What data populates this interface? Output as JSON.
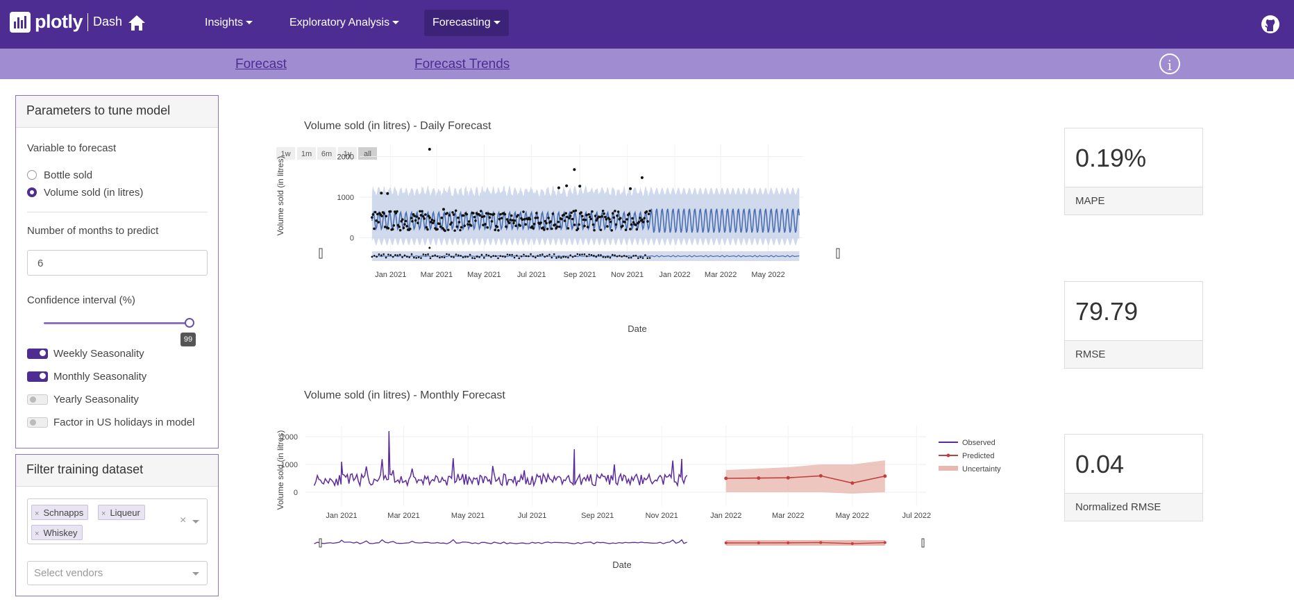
{
  "navbar": {
    "brand": "plotly",
    "brand_sub": "Dash",
    "menus": [
      {
        "label": "Insights"
      },
      {
        "label": "Exploratory Analysis"
      },
      {
        "label": "Forecasting"
      }
    ]
  },
  "subnav": {
    "links": [
      "Forecast",
      "Forecast Trends"
    ],
    "info_glyph": "i"
  },
  "params": {
    "title": "Parameters to tune model",
    "variable_label": "Variable to forecast",
    "options": [
      "Bottle sold",
      "Volume sold (in litres)"
    ],
    "selected_option": "Volume sold (in litres)",
    "months_label": "Number of months to predict",
    "months_value": "6",
    "ci_label": "Confidence interval (%)",
    "ci_value": "99",
    "toggles": [
      {
        "label": "Weekly Seasonality",
        "on": true
      },
      {
        "label": "Monthly Seasonality",
        "on": true
      },
      {
        "label": "Yearly Seasonality",
        "on": false
      },
      {
        "label": "Factor in US holidays in model",
        "on": false
      }
    ]
  },
  "filter": {
    "title": "Filter training dataset",
    "chips": [
      "Schnapps",
      "Liqueur",
      "Whiskey"
    ],
    "clear_glyph": "×",
    "vendors_placeholder": "Select vendors"
  },
  "metrics": [
    {
      "value": "0.19%",
      "label": "MAPE"
    },
    {
      "value": "79.79",
      "label": "RMSE"
    },
    {
      "value": "0.04",
      "label": "Normalized RMSE"
    }
  ],
  "colors": {
    "primary": "#4d2d91",
    "subnav": "#a08cd0",
    "observed": "#5b2a9c",
    "predicted": "#c0403f",
    "uncertainty": "#e8b8b0",
    "daily_line": "#4a6fb0",
    "daily_band": "#c9d3ea"
  },
  "chart_data": [
    {
      "type": "line",
      "title": "Volume sold (in litres) - Daily Forecast",
      "xlabel": "Date",
      "ylabel": "Volume sold (in litres)",
      "range_buttons": [
        "1w",
        "1m",
        "6m",
        "1y",
        "all"
      ],
      "x_ticks": [
        "Jan 2021",
        "Mar 2021",
        "May 2021",
        "Jul 2021",
        "Sep 2021",
        "Nov 2021",
        "Jan 2022",
        "Mar 2022",
        "May 2022"
      ],
      "y_ticks": [
        0,
        1000,
        2000
      ],
      "ylim": [
        -250,
        2300
      ],
      "xlim": [
        "2020-12-01",
        "2022-06-15"
      ],
      "observed_end": "2021-12-01",
      "forecast_mean": 420,
      "band": [
        -100,
        1150
      ],
      "weekly_amplitude": 300,
      "outliers": [
        {
          "x": "2021-02-20",
          "y": 2180
        },
        {
          "x": "2021-08-25",
          "y": 1680
        },
        {
          "x": "2021-08-15",
          "y": 1280
        },
        {
          "x": "2021-09-01",
          "y": 1270
        },
        {
          "x": "2021-08-05",
          "y": 1230
        },
        {
          "x": "2021-11-20",
          "y": 1480
        },
        {
          "x": "2021-11-05",
          "y": 1210
        },
        {
          "x": "2020-12-20",
          "y": 1100
        },
        {
          "x": "2020-12-28",
          "y": 1090
        },
        {
          "x": "2021-03-10",
          "y": 700
        }
      ]
    },
    {
      "type": "line",
      "title": "Volume sold (in litres) - Monthly Forecast",
      "xlabel": "Date",
      "ylabel": "Volume sold (in litres)",
      "x_ticks": [
        "Jan 2021",
        "Mar 2021",
        "May 2021",
        "Jul 2021",
        "Sep 2021",
        "Nov 2021",
        "Jan 2022",
        "Mar 2022",
        "May 2022",
        "Jul 2022"
      ],
      "y_ticks": [
        0,
        1000,
        2000
      ],
      "ylim": [
        -200,
        2400
      ],
      "xlim": [
        "2020-12-01",
        "2022-07-10"
      ],
      "observed": {
        "start": "2020-12-01",
        "end": "2021-12-01",
        "mean": 450,
        "spikes": [
          {
            "x": "2021-02-15",
            "y": 2200
          },
          {
            "x": "2021-08-10",
            "y": 1550
          },
          {
            "x": "2021-11-20",
            "y": 1200
          },
          {
            "x": "2021-01-01",
            "y": 1100
          }
        ]
      },
      "series": [
        {
          "name": "Observed"
        },
        {
          "name": "Predicted",
          "x": [
            "2022-01-01",
            "2022-02-01",
            "2022-03-01",
            "2022-04-01",
            "2022-05-01",
            "2022-06-01"
          ],
          "y": [
            500,
            510,
            520,
            590,
            330,
            580
          ]
        },
        {
          "name": "Uncertainty",
          "upper": [
            800,
            850,
            900,
            1000,
            1000,
            1150
          ],
          "lower": [
            0,
            0,
            0,
            0,
            -50,
            0
          ]
        }
      ]
    }
  ]
}
